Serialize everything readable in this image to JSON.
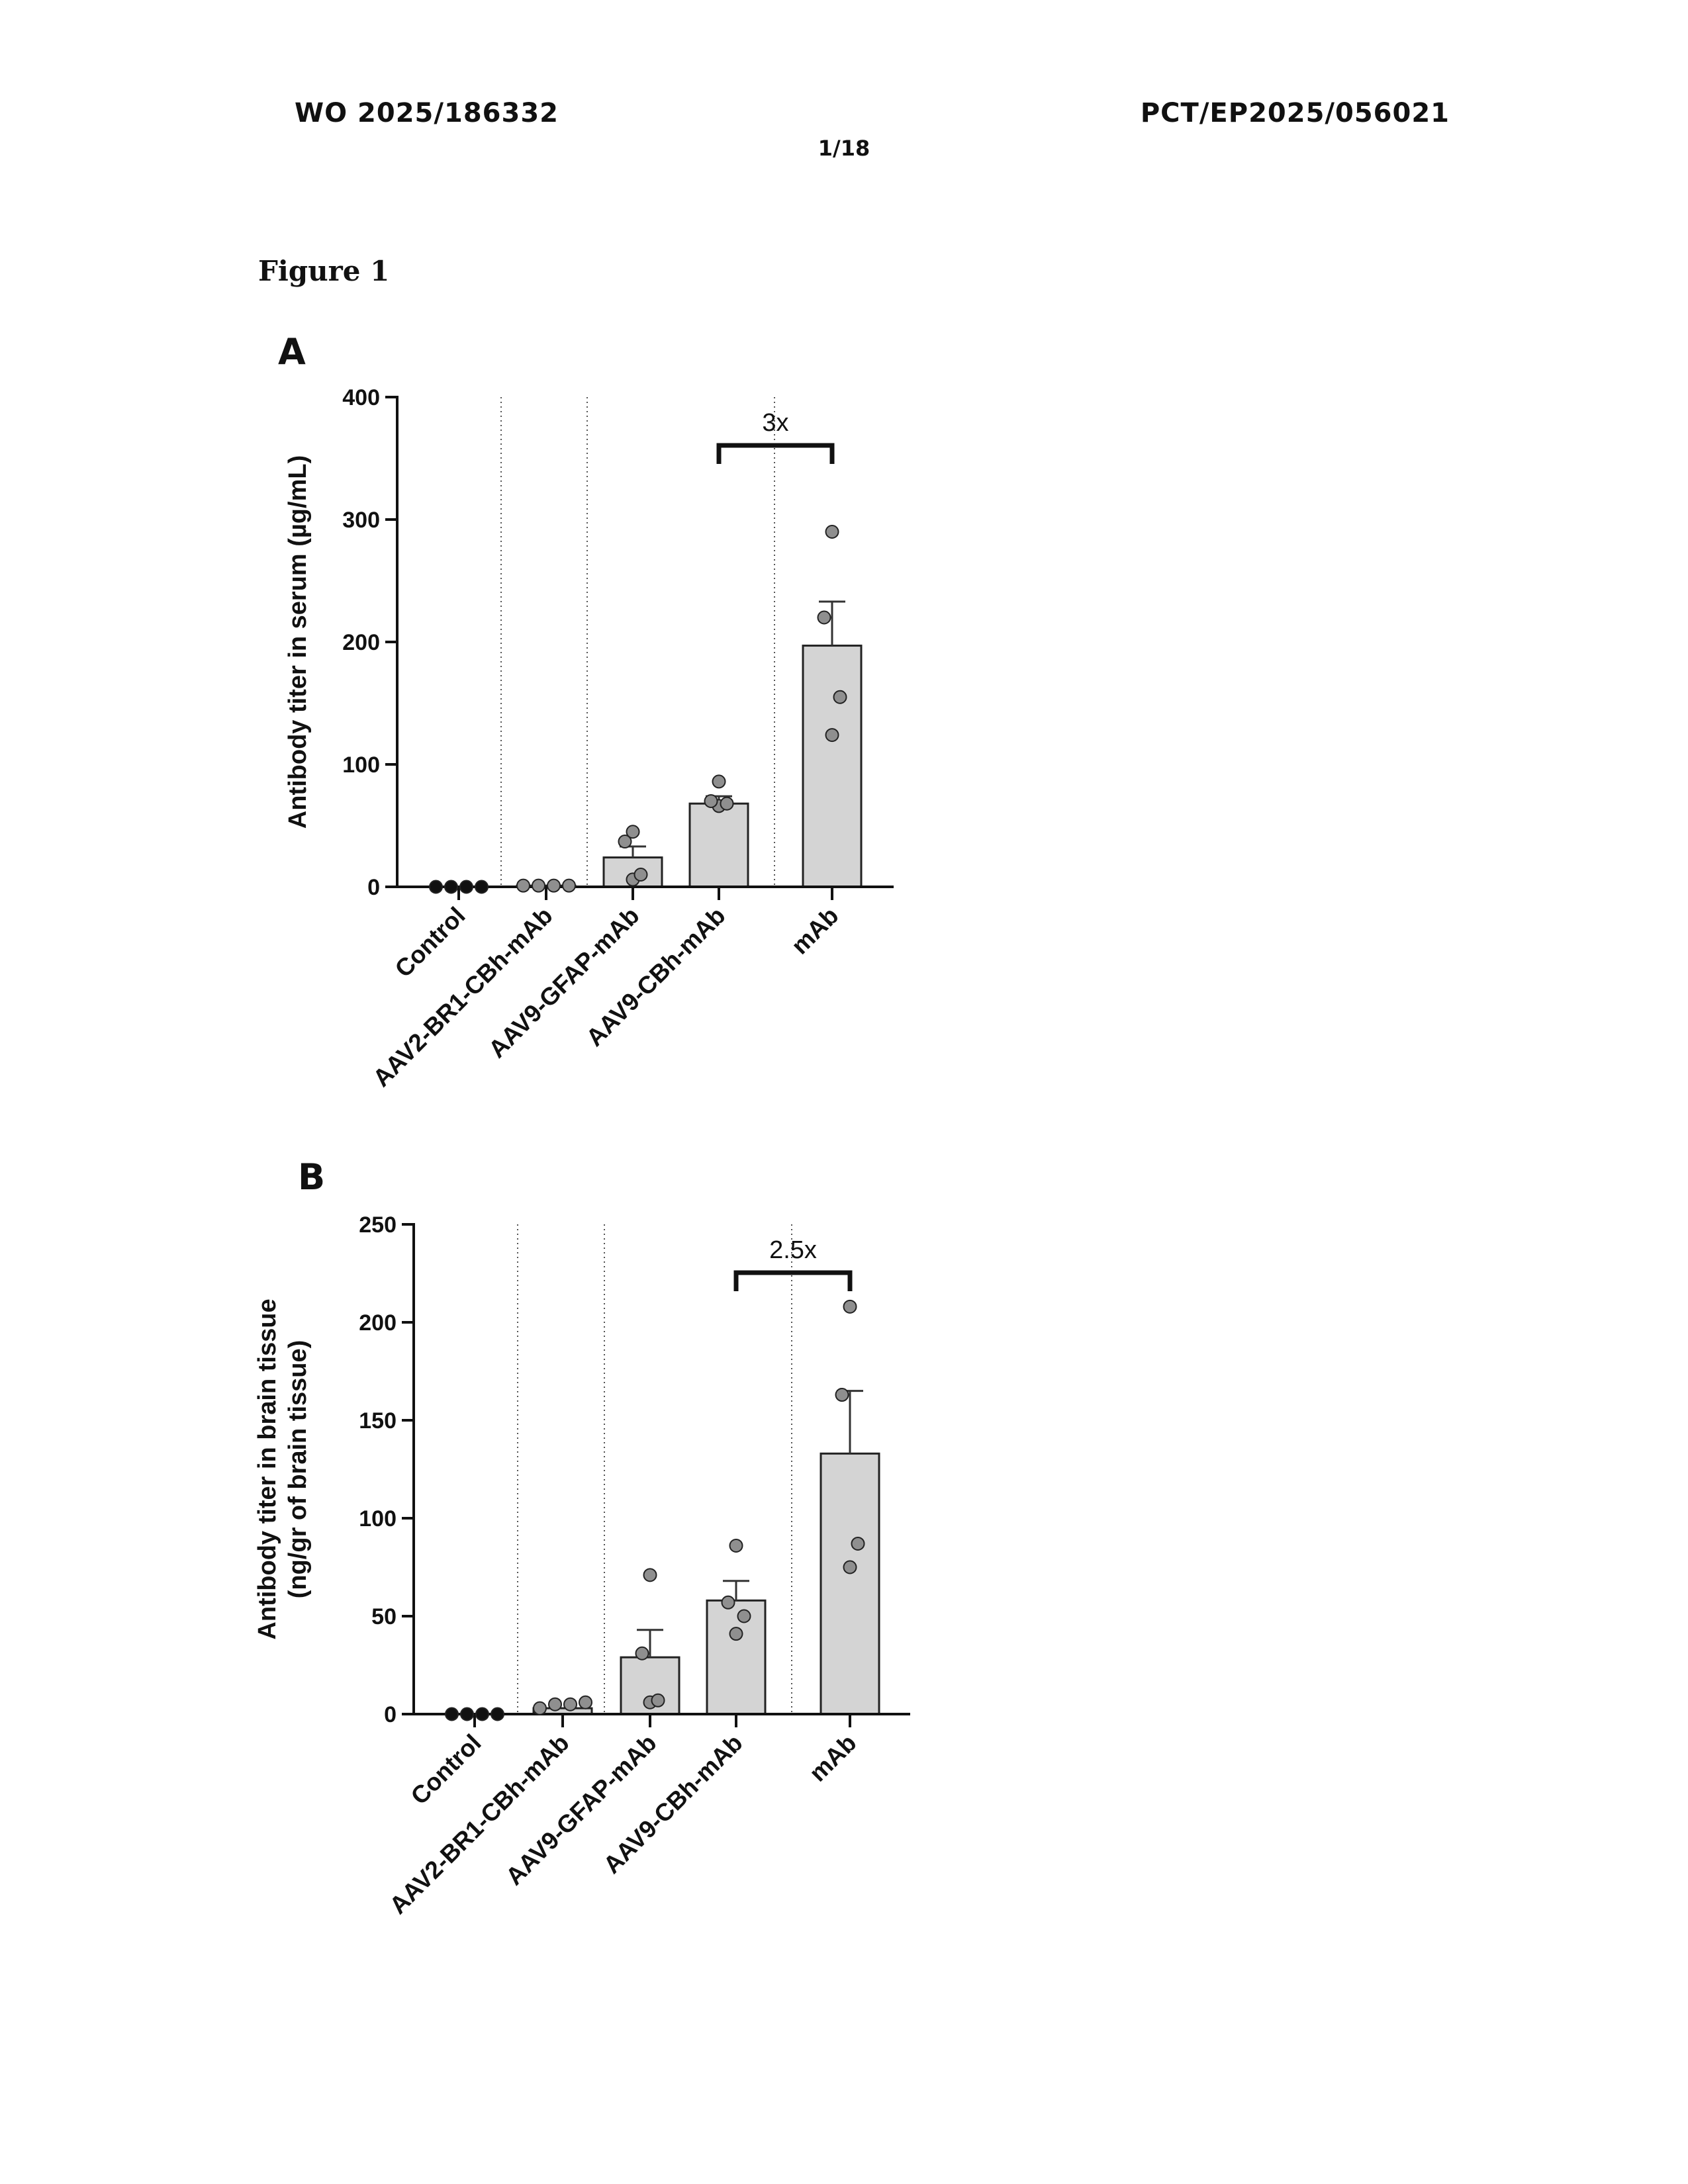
{
  "header": {
    "publication_number": "WO 2025/186332",
    "application_number": "PCT/EP2025/056021",
    "page": "1/18"
  },
  "figure_title": "Figure 1",
  "colors": {
    "bar": "#d4d4d4",
    "point_gray": "#8f8f8f",
    "point_black": "#111111",
    "axis": "#111111"
  },
  "chart_data": [
    {
      "panel": "A",
      "type": "bar",
      "categories": [
        "Control",
        "AAV2-BR1-CBh-mAb",
        "AAV9-GFAP-mAb",
        "AAV9-CBh-mAb",
        "mAb"
      ],
      "values": [
        0,
        1,
        24,
        68,
        197
      ],
      "error_upper": [
        0,
        0,
        33,
        74,
        233
      ],
      "points": [
        [
          0,
          0,
          0,
          0
        ],
        [
          1,
          1,
          1,
          1
        ],
        [
          6,
          10,
          37,
          45
        ],
        [
          66,
          68,
          70,
          86
        ],
        [
          124,
          155,
          220,
          290
        ]
      ],
      "point_color": [
        "black",
        "gray",
        "gray",
        "gray",
        "gray"
      ],
      "ylabel": "Antibody titer in serum (µg/mL)",
      "ylim": [
        0,
        400
      ],
      "yticks": [
        0,
        100,
        200,
        300,
        400
      ],
      "comparison": {
        "from_category": 3,
        "to_category": 4,
        "label": "3x"
      },
      "grid": false,
      "separators": "dotted vertical lines between groups"
    },
    {
      "panel": "B",
      "type": "bar",
      "categories": [
        "Control",
        "AAV2-BR1-CBh-mAb",
        "AAV9-GFAP-mAb",
        "AAV9-CBh-mAb",
        "mAb"
      ],
      "values": [
        0,
        3,
        29,
        58,
        133
      ],
      "error_upper": [
        0,
        0,
        43,
        68,
        165
      ],
      "points": [
        [
          0,
          0,
          0,
          0
        ],
        [
          3,
          5,
          5,
          6
        ],
        [
          6,
          7,
          31,
          71
        ],
        [
          41,
          50,
          57,
          86
        ],
        [
          75,
          87,
          163,
          208
        ]
      ],
      "point_color": [
        "black",
        "gray",
        "gray",
        "gray",
        "gray"
      ],
      "ylabel": [
        "Antibody titer in brain tissue",
        "(ng/gr of brain tissue)"
      ],
      "ylim": [
        0,
        250
      ],
      "yticks": [
        0,
        50,
        100,
        150,
        200,
        250
      ],
      "comparison": {
        "from_category": 3,
        "to_category": 4,
        "label": "2.5x"
      },
      "grid": false,
      "separators": "dotted vertical lines between groups"
    }
  ]
}
